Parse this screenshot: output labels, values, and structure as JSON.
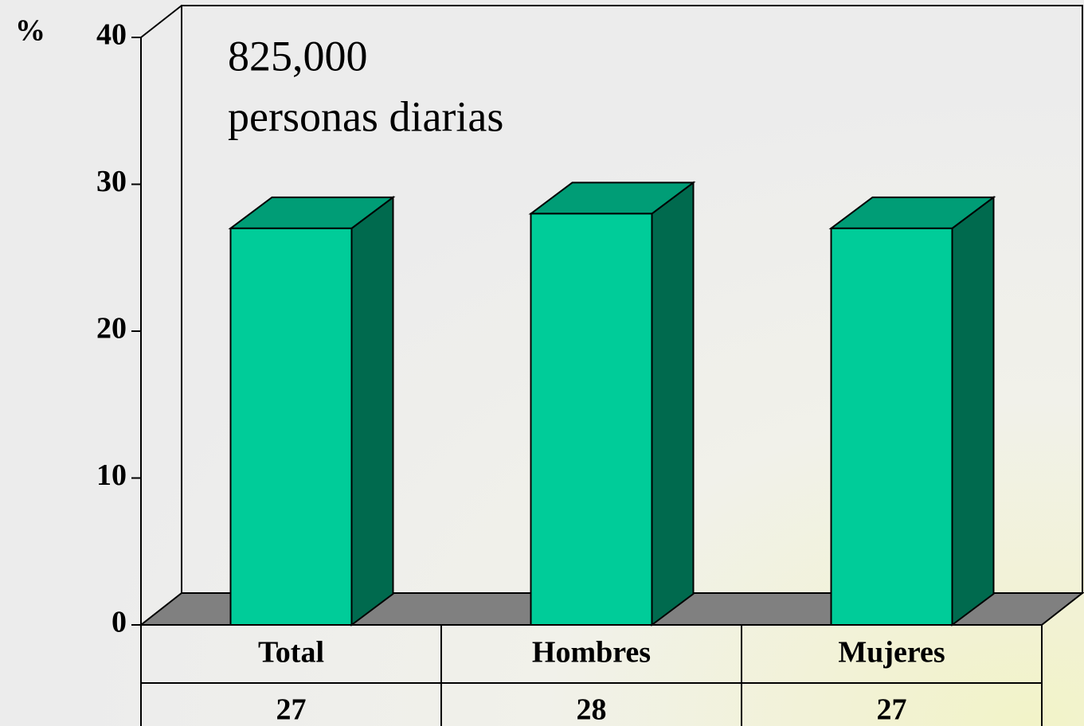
{
  "chart_data": {
    "type": "bar3d",
    "y_label": "%",
    "annotations": [
      "825,000",
      "personas diarias"
    ],
    "categories": [
      "Total",
      "Hombres",
      "Mujeres"
    ],
    "values": [
      27,
      28,
      27
    ],
    "color": "#00cc99",
    "side_color": "#006a4e",
    "top_color": "#009d76",
    "floor_color": "#808080",
    "ylim": [
      0,
      40
    ],
    "yticks": [
      0,
      10,
      20,
      30,
      40
    ]
  }
}
